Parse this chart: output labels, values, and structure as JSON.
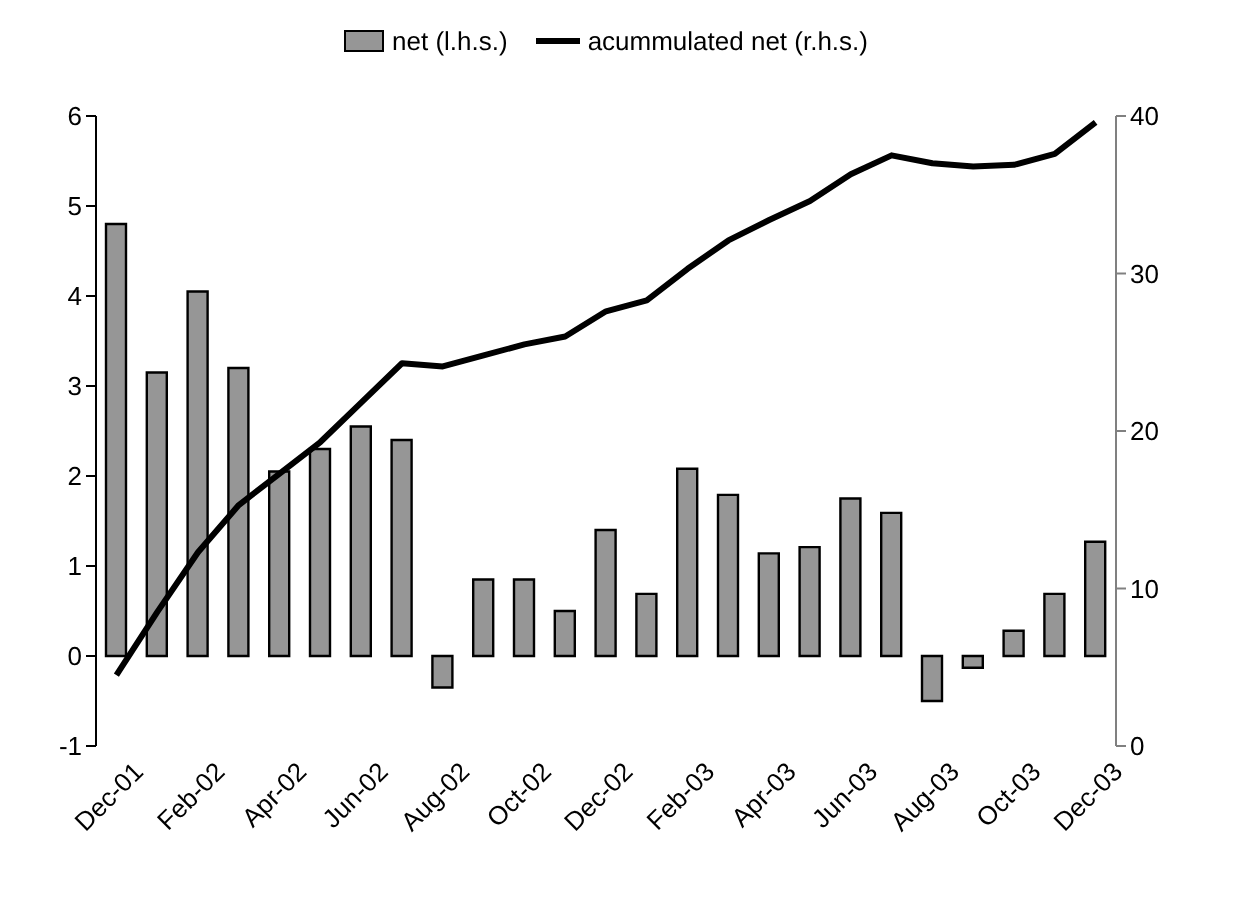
{
  "chart_data": {
    "type": "bar",
    "categories": [
      "Dec-01",
      null,
      "Feb-02",
      null,
      "Apr-02",
      null,
      "Jun-02",
      null,
      "Aug-02",
      null,
      "Oct-02",
      null,
      "Dec-02",
      null,
      "Feb-03",
      null,
      "Apr-03",
      null,
      "Jun-03",
      null,
      "Aug-03",
      null,
      "Oct-03",
      null,
      "Dec-03"
    ],
    "series": [
      {
        "name": "net (l.h.s.)",
        "color": "#969696",
        "values": [
          4.8,
          3.15,
          4.05,
          3.2,
          2.05,
          2.3,
          2.55,
          2.4,
          -0.35,
          0.85,
          0.85,
          0.5,
          1.4,
          0.69,
          2.08,
          1.79,
          1.14,
          1.21,
          1.75,
          1.59,
          -0.5,
          -0.13,
          0.28,
          0.69,
          1.27
        ]
      },
      {
        "name": "acummulated net (r.h.s.)",
        "type": "line",
        "axis": "y2",
        "color": "#000000",
        "values": [
          4.5,
          8.5,
          12.3,
          15.3,
          17.3,
          19.3,
          21.8,
          24.3,
          24.1,
          24.8,
          25.5,
          26,
          27.6,
          28.3,
          30.3,
          32.1,
          33.4,
          34.6,
          36.3,
          37.5,
          37,
          36.8,
          36.9,
          37.6,
          39.6
        ]
      }
    ],
    "ylim": [
      -1,
      6
    ],
    "yticks": [
      -1,
      0,
      1,
      2,
      3,
      4,
      5,
      6
    ],
    "y2lim": [
      0,
      40
    ],
    "y2ticks": [
      0,
      10,
      20,
      30,
      40
    ],
    "grid": false,
    "legend": "top",
    "marker": "none",
    "line_style": "solid"
  }
}
